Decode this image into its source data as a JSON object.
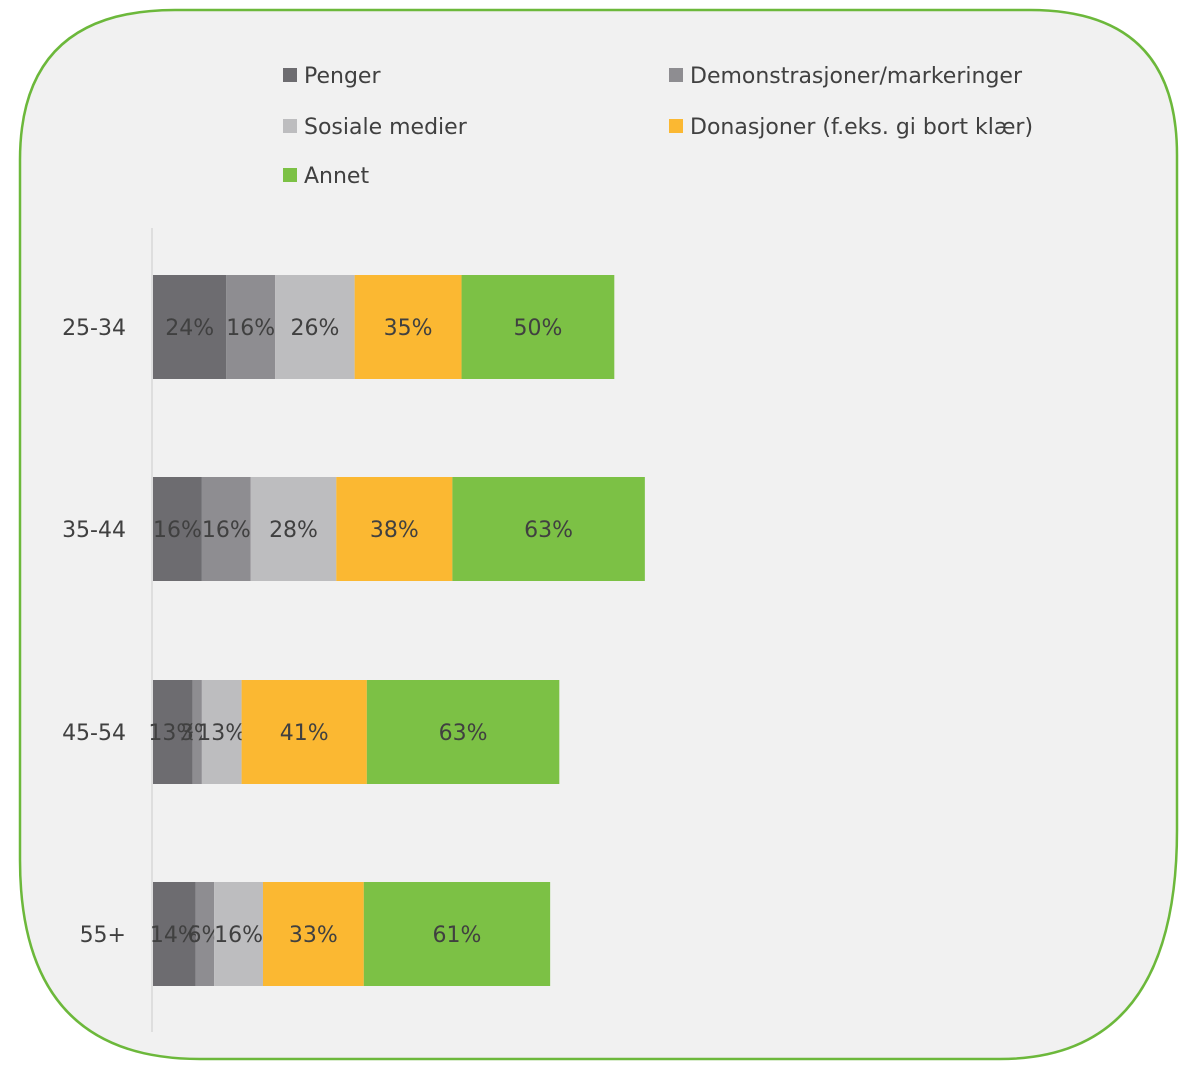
{
  "chart_data": {
    "type": "bar",
    "orientation": "horizontal",
    "stacked": true,
    "categories": [
      "25-34",
      "35-44",
      "45-54",
      "55+"
    ],
    "series": [
      {
        "name": "Penger",
        "color": "#6d6c70",
        "values": [
          24,
          16,
          13,
          14
        ],
        "labels": [
          "24%",
          "16%",
          "13%",
          "14%"
        ]
      },
      {
        "name": "Demonstrasjoner/markeringer",
        "color": "#8e8d91",
        "values": [
          16,
          16,
          3,
          6
        ],
        "labels": [
          "16%",
          "16%",
          "3%",
          "6%"
        ]
      },
      {
        "name": "Sosiale medier",
        "color": "#bdbdbf",
        "values": [
          26,
          28,
          13,
          16
        ],
        "labels": [
          "26%",
          "28%",
          "13%",
          "16%"
        ]
      },
      {
        "name": "Donasjoner (f.eks. gi bort klær)",
        "color": "#fbb832",
        "values": [
          35,
          38,
          41,
          33
        ],
        "labels": [
          "35%",
          "38%",
          "41%",
          "33%"
        ]
      },
      {
        "name": "Annet",
        "color": "#7cc145",
        "values": [
          50,
          63,
          63,
          61
        ],
        "labels": [
          "50%",
          "63%",
          "63%",
          "61%"
        ]
      }
    ],
    "legend_position": "top",
    "grid": false
  },
  "style": {
    "panel_background": "#f1f1f1",
    "panel_border": "#6cb83b",
    "axis_color": "#cccccc",
    "label_color": "#404040"
  }
}
